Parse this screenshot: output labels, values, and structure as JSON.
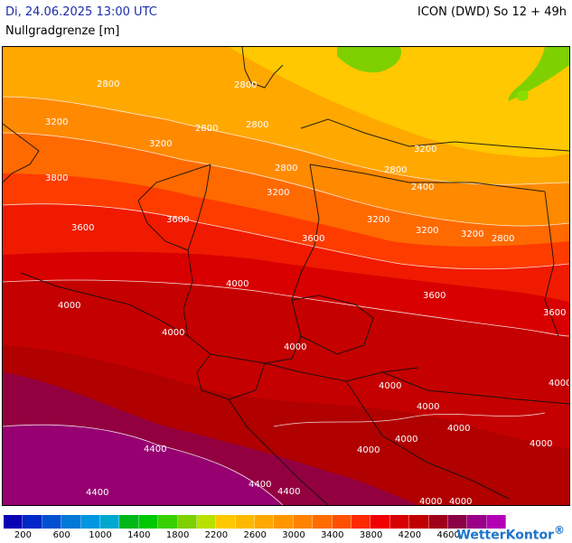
{
  "header": {
    "date": "Di, 24.06.2025 13:00 UTC",
    "model": "ICON (DWD) So 12 + 49h",
    "parameter": "Nullgradgrenze [m]"
  },
  "map": {
    "contour_labels": [
      "2800",
      "2800",
      "2800",
      "2800",
      "3200",
      "3200",
      "3200",
      "3200",
      "3200",
      "3200",
      "3600",
      "3600",
      "3600",
      "3600",
      "3600",
      "3800",
      "4000",
      "4000",
      "4000",
      "4000",
      "4000",
      "4000",
      "4000",
      "4000",
      "4000",
      "4000",
      "4400",
      "4400",
      "4400",
      "4400",
      "4000",
      "2400",
      "2800",
      "3200",
      "4000",
      "2800",
      "2800",
      "4000"
    ],
    "zones": [
      {
        "name": "zone-2800-2400",
        "color": "#ffc800"
      },
      {
        "name": "zone-2800",
        "color": "#ffb200"
      },
      {
        "name": "zone-3200",
        "color": "#ff8a00"
      },
      {
        "name": "zone-3400",
        "color": "#ff6a00"
      },
      {
        "name": "zone-3600",
        "color": "#ff3c00"
      },
      {
        "name": "zone-3800",
        "color": "#f01a00"
      },
      {
        "name": "zone-4000",
        "color": "#d40000"
      },
      {
        "name": "zone-4200",
        "color": "#b30000"
      },
      {
        "name": "zone-4400",
        "color": "#93003d"
      },
      {
        "name": "zone-4600",
        "color": "#960070"
      },
      {
        "name": "zone-green",
        "color": "#7ed000"
      }
    ]
  },
  "legend": {
    "colors": [
      "#0a00b4",
      "#0028c8",
      "#0050d2",
      "#0078d8",
      "#0096e0",
      "#00a8d0",
      "#00b818",
      "#00c800",
      "#38d000",
      "#7ed000",
      "#b8e000",
      "#ffc800",
      "#ffb800",
      "#ffa800",
      "#ff9600",
      "#ff8200",
      "#ff6c00",
      "#ff5000",
      "#ff2a00",
      "#f00000",
      "#d80000",
      "#c00000",
      "#a0001a",
      "#8c0046",
      "#9a0088",
      "#b400b4"
    ],
    "ticks": [
      "200",
      "600",
      "1000",
      "1400",
      "1800",
      "2200",
      "2600",
      "3000",
      "3400",
      "3800",
      "4200",
      "4600"
    ]
  },
  "brand": {
    "name": "WetterKontor",
    "mark": "®"
  }
}
